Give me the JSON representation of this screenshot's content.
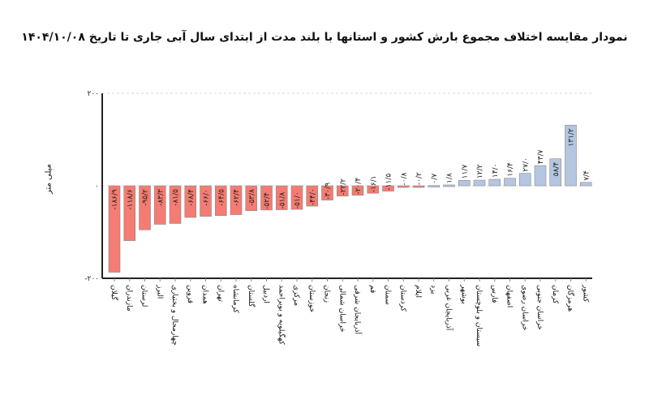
{
  "title": "نمودار مقایسه اختلاف مجموع بارش کشور و استانها با بلند مدت از ابتدای سال آبی جاری تا تاریخ ۱۴۰۴/۱۰/۰۸",
  "colors": {
    "negative": "#f47c72",
    "positive": "#b4c6e0",
    "bar_stroke": "#8a8a8a",
    "axis": "#222222"
  },
  "chart_data": {
    "type": "bar",
    "title": "نمودار مقایسه اختلاف مجموع بارش کشور و استانها با بلند مدت از ابتدای سال آبی جاری تا تاریخ ۱۴۰۴/۱۰/۰۸",
    "xlabel": "",
    "ylabel": "میلی متر",
    "ylim": [
      -200,
      200
    ],
    "yticks": [
      200,
      0,
      -200
    ],
    "ytick_labels": [
      "۲۰۰",
      "۰",
      "-۲۰۰"
    ],
    "grid": false,
    "legend": null,
    "categories": [
      "گیلان",
      "مازندران",
      "لرستان",
      "البرز",
      "چهارمحال و بختیاری",
      "قزوین",
      "همدان",
      "تهران",
      "کرمانشاه",
      "گلستان",
      "اردبیل",
      "کهگیلویه و بویراحمد",
      "مرکزی",
      "خوزستان",
      "زنجان",
      "خراسان شمالی",
      "آذربایجان شرقی",
      "قم",
      "سمنان",
      "کردستان",
      "ایلام",
      "یزد",
      "آذربایجان غربی",
      "بوشهر",
      "سیستان و بلوچستان",
      "فارس",
      "اصفهان",
      "خراسان رضوی",
      "خراسان جنوبی",
      "کرمان",
      "هرمزگان",
      "کشور"
    ],
    "values": [
      -186.9,
      -118.6,
      -95.2,
      -83.3,
      -81.5,
      -68.4,
      -66.0,
      -64.5,
      -62.4,
      -53.8,
      -52.4,
      -51.8,
      -51.0,
      -44.0,
      -30.9,
      -22.2,
      -20.4,
      -16.1,
      -11.5,
      -0.8,
      -0.2,
      0.7,
      1.8,
      11.7,
      12.2,
      14.0,
      16.4,
      27.0,
      43.7,
      58.4,
      131.2,
      7.4
    ],
    "value_labels": [
      "-۱۸۶/۹",
      "-۱۱۸/۶",
      "-۹۵/۲",
      "-۸۳/۳",
      "-۸۱/۵",
      "-۶۸/۴",
      "-۶۶/۰",
      "-۶۴/۵",
      "-۶۲/۴",
      "-۵۳/۸",
      "-۵۲/۴",
      "-۵۱/۸",
      "-۵۱/۰",
      "-۴۴/۰",
      "-۳۰/۹",
      "-۲۲/۲",
      "-۲۰/۴",
      "-۱۶/۱",
      "-۱۱/۵",
      "-۰/۸",
      "-۰/۲",
      "۰/۷",
      "۱/۸",
      "۱۱/۷",
      "۱۲/۲",
      "۱۴/۰",
      "۱۶/۴",
      "۲۷/۰",
      "۴۳/۷",
      "۵۸/۴",
      "۱۳۱/۲",
      "۷/۴"
    ]
  }
}
